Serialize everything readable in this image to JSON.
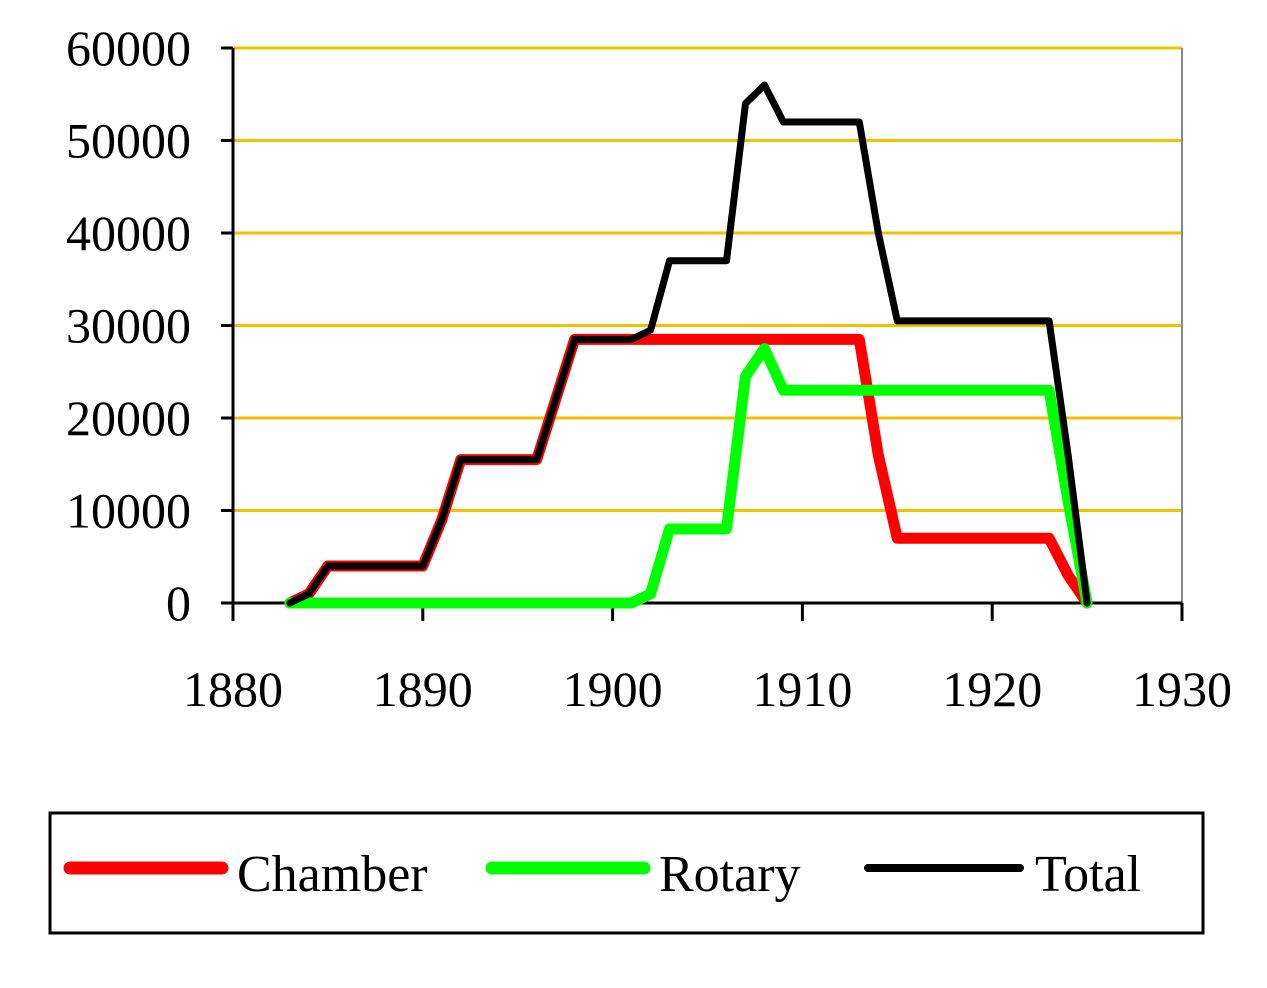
{
  "chart_data": {
    "type": "line",
    "title": "",
    "xlabel": "",
    "ylabel": "",
    "xlim": [
      1880,
      1930
    ],
    "ylim": [
      0,
      60000
    ],
    "x_ticks": [
      "1880",
      "1890",
      "1900",
      "1910",
      "1920",
      "1930"
    ],
    "y_ticks": [
      "0",
      "10000",
      "20000",
      "30000",
      "40000",
      "50000",
      "60000"
    ],
    "grid": {
      "y_major": true,
      "color": "#f2c200"
    },
    "legend": {
      "placement": "bottom",
      "items": [
        {
          "label": "Chamber",
          "color": "#ff0000"
        },
        {
          "label": "Rotary",
          "color": "#00ff00"
        },
        {
          "label": "Total",
          "color": "#000000"
        }
      ]
    },
    "series": [
      {
        "name": "Chamber",
        "color": "#ff0000",
        "points": [
          [
            1883,
            0
          ],
          [
            1884,
            1000
          ],
          [
            1885,
            4000
          ],
          [
            1890,
            4000
          ],
          [
            1891,
            9000
          ],
          [
            1892,
            15500
          ],
          [
            1896,
            15500
          ],
          [
            1897,
            22000
          ],
          [
            1898,
            28500
          ],
          [
            1913,
            28500
          ],
          [
            1914,
            16000
          ],
          [
            1915,
            7000
          ],
          [
            1923,
            7000
          ],
          [
            1924,
            3000
          ],
          [
            1925,
            0
          ]
        ]
      },
      {
        "name": "Rotary",
        "color": "#00ff00",
        "points": [
          [
            1883,
            0
          ],
          [
            1901,
            0
          ],
          [
            1902,
            1000
          ],
          [
            1903,
            8000
          ],
          [
            1906,
            8000
          ],
          [
            1907,
            24500
          ],
          [
            1908,
            27500
          ],
          [
            1909,
            23000
          ],
          [
            1923,
            23000
          ],
          [
            1924,
            11000
          ],
          [
            1925,
            0
          ]
        ]
      },
      {
        "name": "Total",
        "color": "#000000",
        "points": [
          [
            1883,
            0
          ],
          [
            1884,
            1000
          ],
          [
            1885,
            4000
          ],
          [
            1890,
            4000
          ],
          [
            1891,
            9000
          ],
          [
            1892,
            15500
          ],
          [
            1896,
            15500
          ],
          [
            1897,
            22000
          ],
          [
            1898,
            28500
          ],
          [
            1901,
            28500
          ],
          [
            1902,
            29500
          ],
          [
            1903,
            37000
          ],
          [
            1906,
            37000
          ],
          [
            1907,
            54000
          ],
          [
            1908,
            56000
          ],
          [
            1909,
            52000
          ],
          [
            1913,
            52000
          ],
          [
            1914,
            40000
          ],
          [
            1915,
            30500
          ],
          [
            1923,
            30500
          ],
          [
            1924,
            16000
          ],
          [
            1925,
            0
          ]
        ]
      }
    ]
  }
}
